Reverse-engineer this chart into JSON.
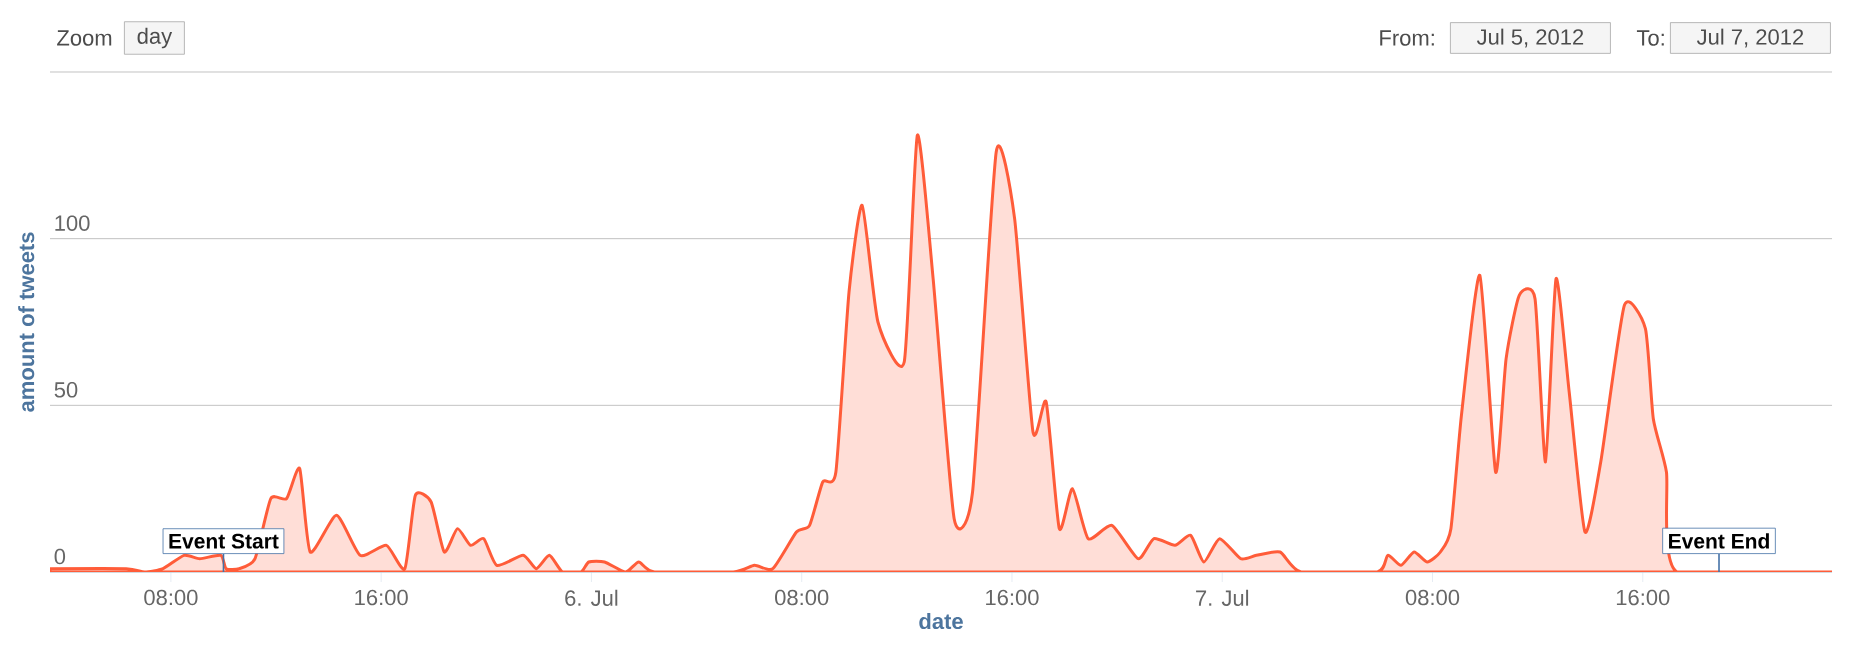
{
  "chart_data": {
    "type": "area",
    "xlabel": "date",
    "ylabel": "amount of tweets",
    "color": "#ff5c39",
    "grid": "y",
    "xlim": [
      "2012-07-05T03:24",
      "2012-07-07T23:12"
    ],
    "ylim": [
      0,
      150
    ],
    "xticks": [
      {
        "value": "2012-07-05T08:00",
        "label": "08:00"
      },
      {
        "value": "2012-07-05T16:00",
        "label": "16:00"
      },
      {
        "value": "2012-07-06T00:00",
        "label": "6. Jul"
      },
      {
        "value": "2012-07-06T08:00",
        "label": "08:00"
      },
      {
        "value": "2012-07-06T16:00",
        "label": "16:00"
      },
      {
        "value": "2012-07-07T00:00",
        "label": "7. Jul"
      },
      {
        "value": "2012-07-07T08:00",
        "label": "08:00"
      },
      {
        "value": "2012-07-07T16:00",
        "label": "16:00"
      }
    ],
    "yticks": [
      0,
      50,
      100,
      {
        "value": 150,
        "label": null
      }
    ],
    "x": [
      "2012-07-05T03:24",
      "2012-07-05T06:18",
      "2012-07-05T07:00",
      "2012-07-05T07:42",
      "2012-07-05T08:30",
      "2012-07-05T09:06",
      "2012-07-05T09:54",
      "2012-07-05T10:06",
      "2012-07-05T10:36",
      "2012-07-05T11:12",
      "2012-07-05T11:48",
      "2012-07-05T12:24",
      "2012-07-05T12:54",
      "2012-07-05T13:18",
      "2012-07-05T14:18",
      "2012-07-05T15:12",
      "2012-07-05T16:12",
      "2012-07-05T16:54",
      "2012-07-05T17:18",
      "2012-07-05T17:54",
      "2012-07-05T18:24",
      "2012-07-05T18:54",
      "2012-07-05T19:24",
      "2012-07-05T19:54",
      "2012-07-05T20:24",
      "2012-07-05T21:24",
      "2012-07-05T21:54",
      "2012-07-05T22:24",
      "2012-07-05T22:54",
      "2012-07-05T23:36",
      "2012-07-05T23:54",
      "2012-07-06T00:30",
      "2012-07-06T01:18",
      "2012-07-06T01:48",
      "2012-07-06T02:24",
      "2012-07-06T05:24",
      "2012-07-06T06:12",
      "2012-07-06T06:54",
      "2012-07-06T07:48",
      "2012-07-06T08:18",
      "2012-07-06T08:48",
      "2012-07-06T09:18",
      "2012-07-06T09:48",
      "2012-07-06T10:18",
      "2012-07-06T10:54",
      "2012-07-06T11:54",
      "2012-07-06T12:24",
      "2012-07-06T13:00",
      "2012-07-06T13:48",
      "2012-07-06T14:30",
      "2012-07-06T15:24",
      "2012-07-06T16:06",
      "2012-07-06T16:48",
      "2012-07-06T17:18",
      "2012-07-06T17:48",
      "2012-07-06T18:18",
      "2012-07-06T18:54",
      "2012-07-06T19:48",
      "2012-07-06T20:48",
      "2012-07-06T21:24",
      "2012-07-06T22:12",
      "2012-07-06T22:48",
      "2012-07-06T23:18",
      "2012-07-06T23:54",
      "2012-07-07T00:42",
      "2012-07-07T01:18",
      "2012-07-07T02:12",
      "2012-07-07T03:00",
      "2012-07-07T05:54",
      "2012-07-07T06:18",
      "2012-07-07T06:48",
      "2012-07-07T07:18",
      "2012-07-07T07:48",
      "2012-07-07T08:18",
      "2012-07-07T08:42",
      "2012-07-07T09:06",
      "2012-07-07T09:48",
      "2012-07-07T10:24",
      "2012-07-07T10:48",
      "2012-07-07T11:18",
      "2012-07-07T11:54",
      "2012-07-07T12:18",
      "2012-07-07T12:42",
      "2012-07-07T13:12",
      "2012-07-07T13:48",
      "2012-07-07T14:24",
      "2012-07-07T15:18",
      "2012-07-07T16:06",
      "2012-07-07T16:24",
      "2012-07-07T16:54",
      "2012-07-07T17:18",
      "2012-07-07T23:12"
    ],
    "values": [
      1,
      1,
      0,
      1,
      5,
      4,
      5,
      1,
      1,
      4,
      22,
      22,
      31,
      6,
      17,
      5,
      8,
      1,
      23,
      21,
      6,
      13,
      8,
      10,
      2,
      5,
      1,
      5,
      0,
      0,
      3,
      3,
      0,
      3,
      0,
      0,
      2,
      1,
      12,
      14,
      27,
      30,
      84,
      110,
      75,
      63,
      131,
      88,
      16,
      24,
      126,
      106,
      42,
      51,
      13,
      25,
      10,
      14,
      4,
      10,
      8,
      11,
      3,
      10,
      4,
      5,
      6,
      0,
      0,
      5,
      2,
      6,
      3,
      6,
      13,
      47,
      89,
      30,
      64,
      83,
      82,
      33,
      88,
      54,
      12,
      33,
      80,
      73,
      46,
      30,
      0,
      0
    ],
    "annotations": [
      "Zoom",
      "day",
      "From:",
      "Jul 5, 2012",
      "To:",
      "Jul 7, 2012",
      {
        "text": "Event Start",
        "x": "2012-07-05T10:00",
        "y": 0
      },
      {
        "text": "Event End",
        "x": "2012-07-07T18:54",
        "y": 0
      }
    ]
  }
}
